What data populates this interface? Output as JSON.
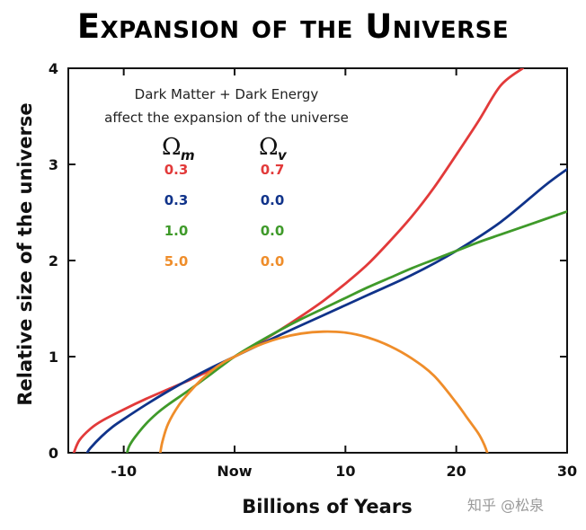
{
  "title": "Expansion of the Universe",
  "annotation": {
    "line1": "Dark Matter + Dark Energy",
    "line2": "affect the expansion of the universe",
    "header_m": "m",
    "header_v": "v",
    "rows": [
      {
        "omega_m": "0.3",
        "omega_v": "0.7",
        "color": "#e23a3a"
      },
      {
        "omega_m": "0.3",
        "omega_v": "0.0",
        "color": "#10338a"
      },
      {
        "omega_m": "1.0",
        "omega_v": "0.0",
        "color": "#3f9a2a"
      },
      {
        "omega_m": "5.0",
        "omega_v": "0.0",
        "color": "#ef8d2a"
      }
    ]
  },
  "watermark": "知乎 @松泉",
  "chart_data": {
    "type": "line",
    "title": "Expansion of the Universe",
    "xlabel": "Billions of Years",
    "ylabel": "Relative size of the universe",
    "xlim": [
      -15,
      30
    ],
    "ylim": [
      0,
      4
    ],
    "x_ticks": [
      {
        "value": -10,
        "label": "-10"
      },
      {
        "value": 0,
        "label": "Now"
      },
      {
        "value": 10,
        "label": "10"
      },
      {
        "value": 20,
        "label": "20"
      },
      {
        "value": 30,
        "label": "30"
      }
    ],
    "y_ticks": [
      {
        "value": 0,
        "label": "0"
      },
      {
        "value": 1,
        "label": "1"
      },
      {
        "value": 2,
        "label": "2"
      },
      {
        "value": 3,
        "label": "3"
      },
      {
        "value": 4,
        "label": "4"
      }
    ],
    "grid": false,
    "series": [
      {
        "color": "#e23a3a",
        "x": [
          -14.5,
          -14.0,
          -13.0,
          -12.0,
          -10.0,
          -8.0,
          -6.0,
          -4.0,
          -2.0,
          0.0,
          2.0,
          4.0,
          6.0,
          8.0,
          10.0,
          12.0,
          14.0,
          16.0,
          18.0,
          20.0,
          22.0,
          24.0,
          26.0
        ],
        "y": [
          0.0,
          0.13,
          0.25,
          0.33,
          0.45,
          0.56,
          0.66,
          0.76,
          0.87,
          1.0,
          1.13,
          1.27,
          1.42,
          1.58,
          1.76,
          1.96,
          2.2,
          2.46,
          2.76,
          3.1,
          3.45,
          3.82,
          4.0
        ]
      },
      {
        "color": "#10338a",
        "x": [
          -13.3,
          -13.0,
          -12.0,
          -11.0,
          -10.0,
          -8.0,
          -6.0,
          -4.0,
          -2.0,
          0.0,
          4.0,
          8.0,
          12.0,
          16.0,
          20.0,
          24.0,
          28.0,
          30.0
        ],
        "y": [
          0.0,
          0.05,
          0.17,
          0.27,
          0.35,
          0.5,
          0.64,
          0.77,
          0.89,
          1.0,
          1.22,
          1.43,
          1.64,
          1.85,
          2.1,
          2.4,
          2.78,
          2.95
        ]
      },
      {
        "color": "#3f9a2a",
        "x": [
          -9.7,
          -9.5,
          -9.0,
          -8.0,
          -7.0,
          -6.0,
          -4.0,
          -2.0,
          0.0,
          2.0,
          4.0,
          6.0,
          8.0,
          10.0,
          12.0,
          14.0,
          16.0,
          18.0,
          20.0,
          22.0,
          24.0,
          26.0,
          28.0,
          30.0
        ],
        "y": [
          0.0,
          0.07,
          0.16,
          0.3,
          0.41,
          0.5,
          0.66,
          0.83,
          1.0,
          1.14,
          1.27,
          1.39,
          1.5,
          1.61,
          1.72,
          1.82,
          1.92,
          2.01,
          2.1,
          2.19,
          2.27,
          2.35,
          2.43,
          2.51
        ]
      },
      {
        "color": "#ef8d2a",
        "x": [
          -6.7,
          -6.5,
          -6.0,
          -5.0,
          -4.0,
          -3.0,
          -2.0,
          -1.0,
          0.0,
          2.0,
          4.0,
          6.0,
          8.0,
          10.0,
          12.0,
          14.0,
          16.0,
          18.0,
          20.0,
          21.0,
          22.0,
          22.5,
          22.8
        ],
        "y": [
          0.0,
          0.12,
          0.3,
          0.5,
          0.64,
          0.76,
          0.86,
          0.94,
          1.0,
          1.11,
          1.19,
          1.24,
          1.26,
          1.25,
          1.2,
          1.11,
          0.98,
          0.8,
          0.52,
          0.36,
          0.2,
          0.09,
          0.0
        ]
      }
    ]
  }
}
